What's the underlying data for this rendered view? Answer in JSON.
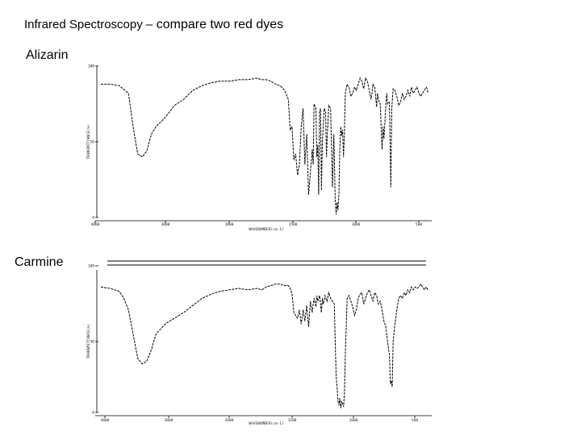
{
  "slide": {
    "title_lead": "Infrared Spectroscopy –",
    "title_rest": " compare two red dyes"
  },
  "labels": {
    "alizarin": "Alizarin",
    "carmine": "Carmine"
  },
  "chart_data": [
    {
      "type": "line",
      "title": "Alizarin",
      "xlabel": "WAVENUMBER(cm-1)",
      "ylabel": "TRANSMITTANCE(%)",
      "xlim": [
        4000,
        400
      ],
      "ylim": [
        0,
        100
      ],
      "xticks": [
        "4000",
        "3000",
        "2000",
        "1500",
        "1000",
        "500"
      ],
      "yticks": [
        "100",
        "50",
        "0"
      ],
      "series": [
        {
          "points": [
            [
              4000,
              88
            ],
            [
              3900,
              88
            ],
            [
              3800,
              87
            ],
            [
              3700,
              82
            ],
            [
              3650,
              60
            ],
            [
              3600,
              42
            ],
            [
              3550,
              40
            ],
            [
              3500,
              44
            ],
            [
              3450,
              55
            ],
            [
              3400,
              60
            ],
            [
              3300,
              66
            ],
            [
              3200,
              74
            ],
            [
              3100,
              78
            ],
            [
              3000,
              84
            ],
            [
              2900,
              87
            ],
            [
              2800,
              89
            ],
            [
              2700,
              90
            ],
            [
              2600,
              90
            ],
            [
              2500,
              91
            ],
            [
              2400,
              91
            ],
            [
              2300,
              92
            ],
            [
              2250,
              91
            ],
            [
              2200,
              91
            ],
            [
              2150,
              90
            ],
            [
              2100,
              88
            ],
            [
              2050,
              87
            ],
            [
              2000,
              84
            ],
            [
              1960,
              78
            ],
            [
              1940,
              58
            ],
            [
              1920,
              60
            ],
            [
              1900,
              38
            ],
            [
              1880,
              42
            ],
            [
              1860,
              28
            ],
            [
              1840,
              35
            ],
            [
              1820,
              60
            ],
            [
              1800,
              72
            ],
            [
              1780,
              35
            ],
            [
              1760,
              55
            ],
            [
              1740,
              15
            ],
            [
              1720,
              30
            ],
            [
              1700,
              45
            ],
            [
              1690,
              35
            ],
            [
              1680,
              75
            ],
            [
              1660,
              72
            ],
            [
              1650,
              40
            ],
            [
              1640,
              48
            ],
            [
              1630,
              15
            ],
            [
              1620,
              70
            ],
            [
              1610,
              72
            ],
            [
              1600,
              18
            ],
            [
              1590,
              50
            ],
            [
              1570,
              72
            ],
            [
              1555,
              70
            ],
            [
              1545,
              40
            ],
            [
              1535,
              55
            ],
            [
              1520,
              74
            ],
            [
              1500,
              72
            ],
            [
              1480,
              20
            ],
            [
              1465,
              55
            ],
            [
              1450,
              12
            ],
            [
              1440,
              2
            ],
            [
              1430,
              10
            ],
            [
              1420,
              5
            ],
            [
              1410,
              15
            ],
            [
              1400,
              45
            ],
            [
              1390,
              60
            ],
            [
              1380,
              54
            ],
            [
              1370,
              58
            ],
            [
              1360,
              40
            ],
            [
              1350,
              56
            ],
            [
              1340,
              82
            ],
            [
              1320,
              88
            ],
            [
              1300,
              86
            ],
            [
              1280,
              80
            ],
            [
              1260,
              82
            ],
            [
              1240,
              86
            ],
            [
              1220,
              84
            ],
            [
              1200,
              88
            ],
            [
              1180,
              92
            ],
            [
              1160,
              90
            ],
            [
              1140,
              85
            ],
            [
              1120,
              92
            ],
            [
              1100,
              90
            ],
            [
              1080,
              84
            ],
            [
              1060,
              78
            ],
            [
              1050,
              82
            ],
            [
              1040,
              88
            ],
            [
              1020,
              86
            ],
            [
              1000,
              73
            ],
            [
              990,
              82
            ],
            [
              980,
              78
            ],
            [
              960,
              75
            ],
            [
              940,
              45
            ],
            [
              930,
              60
            ],
            [
              920,
              52
            ],
            [
              910,
              62
            ],
            [
              900,
              74
            ],
            [
              890,
              82
            ],
            [
              880,
              75
            ],
            [
              860,
              76
            ],
            [
              845,
              20
            ],
            [
              835,
              72
            ],
            [
              820,
              85
            ],
            [
              800,
              84
            ],
            [
              780,
              80
            ],
            [
              760,
              74
            ],
            [
              740,
              76
            ],
            [
              720,
              82
            ],
            [
              700,
              78
            ],
            [
              680,
              80
            ],
            [
              660,
              84
            ],
            [
              640,
              80
            ],
            [
              620,
              86
            ],
            [
              600,
              82
            ],
            [
              580,
              84
            ],
            [
              560,
              86
            ],
            [
              540,
              82
            ],
            [
              520,
              80
            ],
            [
              500,
              82
            ],
            [
              480,
              84
            ],
            [
              460,
              86
            ],
            [
              450,
              85
            ],
            [
              440,
              82
            ]
          ]
        }
      ]
    },
    {
      "type": "line",
      "title": "Carmine",
      "xlabel": "WAVENUMBER(cm-1)",
      "ylabel": "TRANSMITTANCE(%)",
      "xlim": [
        4000,
        400
      ],
      "ylim": [
        0,
        100
      ],
      "xticks": [
        "4000",
        "3000",
        "2000",
        "1500",
        "1000",
        "500"
      ],
      "yticks": [
        "100",
        "50",
        "0"
      ],
      "series": [
        {
          "points": [
            [
              4000,
              88
            ],
            [
              3900,
              87
            ],
            [
              3800,
              85
            ],
            [
              3750,
              80
            ],
            [
              3700,
              72
            ],
            [
              3650,
              55
            ],
            [
              3600,
              38
            ],
            [
              3550,
              34
            ],
            [
              3500,
              36
            ],
            [
              3450,
              44
            ],
            [
              3400,
              55
            ],
            [
              3300,
              62
            ],
            [
              3200,
              66
            ],
            [
              3100,
              70
            ],
            [
              3000,
              75
            ],
            [
              2900,
              80
            ],
            [
              2800,
              83
            ],
            [
              2700,
              85
            ],
            [
              2600,
              86
            ],
            [
              2500,
              87
            ],
            [
              2400,
              86
            ],
            [
              2300,
              87
            ],
            [
              2250,
              86
            ],
            [
              2200,
              88
            ],
            [
              2150,
              89
            ],
            [
              2100,
              90
            ],
            [
              2050,
              90
            ],
            [
              2000,
              89
            ],
            [
              1960,
              89
            ],
            [
              1940,
              87
            ],
            [
              1920,
              83
            ],
            [
              1900,
              70
            ],
            [
              1880,
              68
            ],
            [
              1860,
              66
            ],
            [
              1840,
              72
            ],
            [
              1820,
              62
            ],
            [
              1800,
              72
            ],
            [
              1780,
              64
            ],
            [
              1760,
              75
            ],
            [
              1740,
              60
            ],
            [
              1720,
              78
            ],
            [
              1700,
              70
            ],
            [
              1690,
              76
            ],
            [
              1680,
              80
            ],
            [
              1660,
              74
            ],
            [
              1650,
              82
            ],
            [
              1640,
              78
            ],
            [
              1620,
              82
            ],
            [
              1600,
              70
            ],
            [
              1590,
              80
            ],
            [
              1580,
              76
            ],
            [
              1560,
              82
            ],
            [
              1540,
              78
            ],
            [
              1520,
              84
            ],
            [
              1500,
              80
            ],
            [
              1480,
              78
            ],
            [
              1460,
              76
            ],
            [
              1450,
              50
            ],
            [
              1440,
              25
            ],
            [
              1430,
              18
            ],
            [
              1420,
              8
            ],
            [
              1410,
              5
            ],
            [
              1400,
              10
            ],
            [
              1390,
              3
            ],
            [
              1380,
              8
            ],
            [
              1370,
              6
            ],
            [
              1360,
              4
            ],
            [
              1350,
              12
            ],
            [
              1340,
              40
            ],
            [
              1320,
              80
            ],
            [
              1300,
              82
            ],
            [
              1280,
              78
            ],
            [
              1260,
              74
            ],
            [
              1240,
              68
            ],
            [
              1230,
              70
            ],
            [
              1220,
              72
            ],
            [
              1200,
              80
            ],
            [
              1180,
              83
            ],
            [
              1160,
              84
            ],
            [
              1140,
              76
            ],
            [
              1120,
              80
            ],
            [
              1100,
              84
            ],
            [
              1080,
              86
            ],
            [
              1060,
              82
            ],
            [
              1040,
              78
            ],
            [
              1020,
              84
            ],
            [
              1000,
              82
            ],
            [
              980,
              76
            ],
            [
              960,
              78
            ],
            [
              940,
              72
            ],
            [
              920,
              64
            ],
            [
              900,
              60
            ],
            [
              880,
              50
            ],
            [
              860,
              40
            ],
            [
              850,
              20
            ],
            [
              840,
              22
            ],
            [
              830,
              18
            ],
            [
              820,
              50
            ],
            [
              800,
              62
            ],
            [
              780,
              72
            ],
            [
              760,
              80
            ],
            [
              740,
              82
            ],
            [
              720,
              80
            ],
            [
              700,
              84
            ],
            [
              680,
              82
            ],
            [
              660,
              86
            ],
            [
              640,
              84
            ],
            [
              620,
              88
            ],
            [
              600,
              86
            ],
            [
              580,
              88
            ],
            [
              560,
              87
            ],
            [
              540,
              88
            ],
            [
              520,
              90
            ],
            [
              500,
              88
            ],
            [
              480,
              86
            ],
            [
              460,
              88
            ],
            [
              450,
              87
            ],
            [
              440,
              86
            ]
          ]
        }
      ]
    }
  ]
}
